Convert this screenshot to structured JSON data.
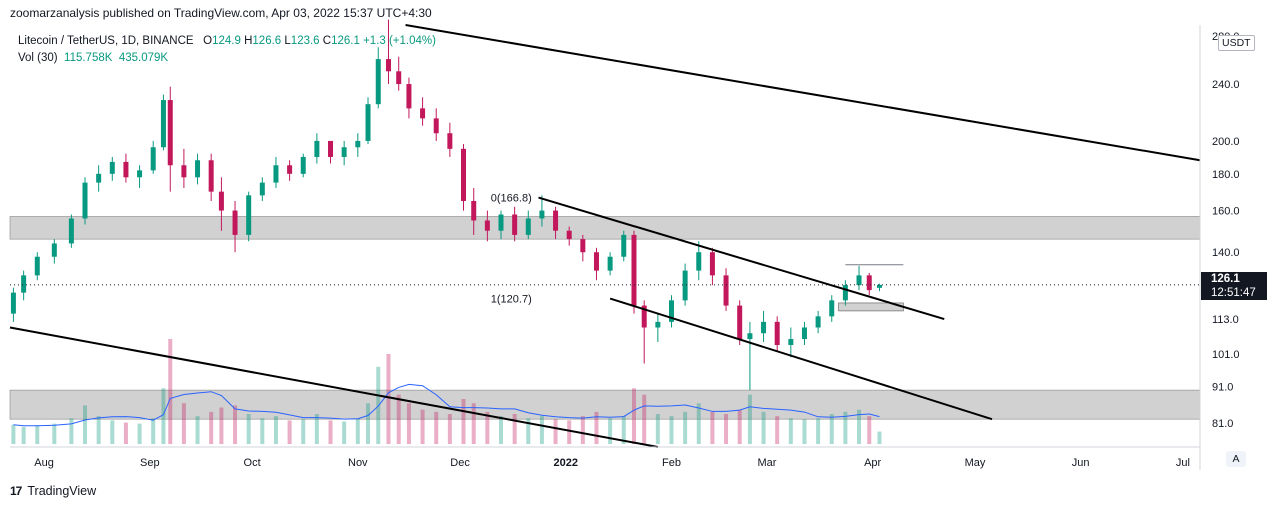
{
  "header": {
    "published": "zoomarzanalysis published on TradingView.com, Apr 03, 2022 15:37 UTC+4:30"
  },
  "legend": {
    "symbol": "Litecoin / TetherUS, 1D, BINANCE",
    "open_label": "O",
    "open": "124.9",
    "high_label": "H",
    "high": "126.6",
    "low_label": "L",
    "low": "123.6",
    "close_label": "C",
    "close": "126.1",
    "change": "+1.3 (+1.04%)"
  },
  "volume": {
    "label": "Vol (30)",
    "value1": "115.758K",
    "value2": "435.079K"
  },
  "price_axis": {
    "currency": "USDT",
    "ticks": [
      "280.0",
      "240.0",
      "200.0",
      "180.0",
      "160.0",
      "140.0",
      "113.0",
      "101.0",
      "91.0",
      "81.0"
    ],
    "current_price": "126.1",
    "countdown": "12:51:47"
  },
  "time_axis": {
    "ticks": [
      "Aug",
      "Sep",
      "Oct",
      "Nov",
      "Dec",
      "2022",
      "Feb",
      "Mar",
      "Apr",
      "May",
      "Jun",
      "Jul"
    ]
  },
  "annotations": {
    "fib_top": "0(166.8)",
    "fib_bottom": "1(120.7)"
  },
  "controls": {
    "auto": "A"
  },
  "footer": {
    "brand": "TradingView",
    "logo": "17"
  },
  "colors": {
    "up": "#089981",
    "down": "#c2185b",
    "zone": "#c9c9c9",
    "trendline": "#000000"
  },
  "chart_data": {
    "type": "candlestick",
    "title": "Litecoin / TetherUS, 1D, BINANCE",
    "yscale": "log",
    "ylim": [
      75,
      290
    ],
    "xlim": [
      "2021-07-22",
      "2022-07-06"
    ],
    "ohlc": [
      [
        "2021-07-23",
        115,
        125,
        112,
        123
      ],
      [
        "2021-07-26",
        123,
        132,
        120,
        130
      ],
      [
        "2021-07-30",
        130,
        140,
        128,
        138
      ],
      [
        "2021-08-04",
        138,
        146,
        135,
        144
      ],
      [
        "2021-08-09",
        144,
        158,
        142,
        156
      ],
      [
        "2021-08-13",
        156,
        178,
        153,
        175
      ],
      [
        "2021-08-17",
        175,
        185,
        170,
        180
      ],
      [
        "2021-08-21",
        180,
        190,
        176,
        187
      ],
      [
        "2021-08-25",
        187,
        192,
        175,
        178
      ],
      [
        "2021-08-29",
        178,
        185,
        172,
        182
      ],
      [
        "2021-09-02",
        182,
        200,
        180,
        196
      ],
      [
        "2021-09-05",
        196,
        232,
        194,
        228
      ],
      [
        "2021-09-07",
        228,
        238,
        170,
        185
      ],
      [
        "2021-09-11",
        185,
        195,
        172,
        178
      ],
      [
        "2021-09-15",
        178,
        192,
        174,
        188
      ],
      [
        "2021-09-19",
        188,
        192,
        165,
        170
      ],
      [
        "2021-09-22",
        170,
        178,
        150,
        160
      ],
      [
        "2021-09-26",
        160,
        165,
        140,
        148
      ],
      [
        "2021-09-30",
        148,
        170,
        145,
        168
      ],
      [
        "2021-10-04",
        168,
        178,
        165,
        175
      ],
      [
        "2021-10-08",
        175,
        190,
        172,
        185
      ],
      [
        "2021-10-12",
        185,
        188,
        176,
        180
      ],
      [
        "2021-10-16",
        180,
        192,
        178,
        190
      ],
      [
        "2021-10-20",
        190,
        205,
        186,
        200
      ],
      [
        "2021-10-24",
        200,
        198,
        186,
        190
      ],
      [
        "2021-10-28",
        190,
        200,
        185,
        196
      ],
      [
        "2021-11-01",
        196,
        205,
        190,
        200
      ],
      [
        "2021-11-04",
        200,
        230,
        198,
        225
      ],
      [
        "2021-11-07",
        225,
        270,
        222,
        260
      ],
      [
        "2021-11-10",
        260,
        295,
        240,
        250
      ],
      [
        "2021-11-13",
        250,
        262,
        235,
        240
      ],
      [
        "2021-11-16",
        240,
        245,
        215,
        222
      ],
      [
        "2021-11-20",
        222,
        230,
        210,
        215
      ],
      [
        "2021-11-24",
        215,
        222,
        200,
        205
      ],
      [
        "2021-11-28",
        205,
        212,
        190,
        195
      ],
      [
        "2021-12-02",
        195,
        198,
        160,
        165
      ],
      [
        "2021-12-05",
        165,
        172,
        148,
        155
      ],
      [
        "2021-12-09",
        155,
        160,
        145,
        150
      ],
      [
        "2021-12-13",
        150,
        160,
        146,
        158
      ],
      [
        "2021-12-17",
        158,
        162,
        145,
        148
      ],
      [
        "2021-12-21",
        148,
        160,
        146,
        156
      ],
      [
        "2021-12-25",
        156,
        168,
        152,
        160
      ],
      [
        "2021-12-29",
        160,
        162,
        146,
        150
      ],
      [
        "2022-01-02",
        150,
        152,
        143,
        146
      ],
      [
        "2022-01-06",
        146,
        148,
        136,
        140
      ],
      [
        "2022-01-10",
        140,
        142,
        128,
        132
      ],
      [
        "2022-01-14",
        132,
        140,
        130,
        138
      ],
      [
        "2022-01-18",
        138,
        150,
        136,
        148
      ],
      [
        "2022-01-21",
        148,
        150,
        115,
        118
      ],
      [
        "2022-01-24",
        118,
        120,
        98,
        110
      ],
      [
        "2022-01-28",
        110,
        115,
        105,
        112
      ],
      [
        "2022-02-01",
        112,
        122,
        110,
        120
      ],
      [
        "2022-02-05",
        120,
        135,
        118,
        132
      ],
      [
        "2022-02-09",
        132,
        145,
        128,
        140
      ],
      [
        "2022-02-13",
        140,
        142,
        126,
        130
      ],
      [
        "2022-02-17",
        130,
        133,
        116,
        118
      ],
      [
        "2022-02-21",
        118,
        120,
        104,
        106
      ],
      [
        "2022-02-24",
        106,
        112,
        90,
        108
      ],
      [
        "2022-02-28",
        108,
        116,
        105,
        112
      ],
      [
        "2022-03-04",
        112,
        114,
        102,
        104
      ],
      [
        "2022-03-08",
        104,
        110,
        100,
        106
      ],
      [
        "2022-03-12",
        106,
        112,
        104,
        110
      ],
      [
        "2022-03-16",
        110,
        116,
        108,
        114
      ],
      [
        "2022-03-20",
        114,
        122,
        112,
        120
      ],
      [
        "2022-03-24",
        120,
        128,
        118,
        126
      ],
      [
        "2022-03-28",
        126,
        134,
        124,
        130
      ],
      [
        "2022-03-31",
        130,
        131,
        122,
        124
      ],
      [
        "2022-04-03",
        124.9,
        126.6,
        123.6,
        126.1
      ]
    ],
    "volume_k": [
      180,
      160,
      170,
      190,
      240,
      360,
      260,
      220,
      200,
      190,
      240,
      520,
      980,
      380,
      260,
      300,
      340,
      360,
      280,
      240,
      260,
      220,
      230,
      280,
      220,
      210,
      240,
      380,
      720,
      840,
      460,
      380,
      320,
      300,
      280,
      420,
      380,
      300,
      260,
      280,
      240,
      260,
      230,
      220,
      260,
      300,
      240,
      260,
      520,
      460,
      280,
      260,
      300,
      380,
      300,
      280,
      320,
      460,
      300,
      260,
      240,
      230,
      240,
      280,
      300,
      320,
      260,
      116
    ],
    "zones": [
      [
        146,
        157
      ],
      [
        82,
        90
      ],
      [
        116,
        119
      ]
    ],
    "trendlines": [
      {
        "from": [
          "2021-11-15",
          290
        ],
        "to": [
          "2022-07-06",
          188
        ]
      },
      {
        "from": [
          "2021-07-22",
          110
        ],
        "to": [
          "2022-01-28",
          75
        ]
      },
      {
        "from": [
          "2021-12-24",
          166.8
        ],
        "to": [
          "2022-04-22",
          113
        ]
      },
      {
        "from": [
          "2022-01-14",
          120.7
        ],
        "to": [
          "2022-05-06",
          82
        ]
      }
    ],
    "resistance_level": {
      "from": "2022-03-24",
      "to": "2022-04-10",
      "value": 134.5
    },
    "current_price": 126.1
  }
}
